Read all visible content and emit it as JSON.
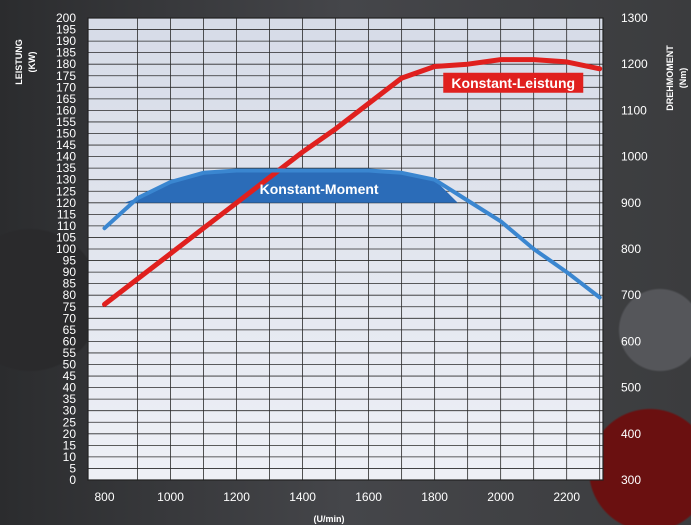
{
  "chart_data": {
    "type": "line",
    "x": [
      800,
      900,
      1000,
      1100,
      1200,
      1300,
      1400,
      1500,
      1600,
      1700,
      1800,
      1900,
      2000,
      2100,
      2200,
      2300
    ],
    "xlim": [
      750,
      2310
    ],
    "x_ticks": [
      800,
      1000,
      1200,
      1400,
      1600,
      1800,
      2000,
      2200
    ],
    "x_unit": "(U/min)",
    "y_left": {
      "label": "LEISTUNG",
      "unit": "(KW)",
      "lim": [
        0,
        200
      ],
      "ticks": [
        0,
        5,
        10,
        15,
        20,
        25,
        30,
        35,
        40,
        45,
        50,
        55,
        60,
        65,
        70,
        75,
        80,
        85,
        90,
        95,
        100,
        105,
        110,
        115,
        120,
        125,
        130,
        135,
        140,
        145,
        150,
        155,
        160,
        165,
        170,
        175,
        180,
        185,
        190,
        195,
        200
      ]
    },
    "y_right": {
      "label": "DREHMOMENT",
      "unit": "(Nm)",
      "lim": [
        300,
        1300
      ],
      "ticks": [
        300,
        400,
        500,
        600,
        700,
        800,
        900,
        1000,
        1100,
        1200,
        1300
      ]
    },
    "series": [
      {
        "name": "Leistung",
        "axis": "left",
        "color": "#e0201e",
        "values": [
          76,
          87,
          98,
          109,
          120,
          131,
          142,
          152,
          163,
          174,
          179,
          180,
          182,
          182,
          181,
          178
        ]
      },
      {
        "name": "Drehmoment",
        "axis": "right",
        "color": "#3a86d0",
        "values": [
          845,
          910,
          945,
          965,
          970,
          970,
          970,
          970,
          970,
          965,
          950,
          905,
          860,
          800,
          750,
          695
        ]
      }
    ],
    "annotations": {
      "torque_band": {
        "label": "Konstant-Moment",
        "color": "#2b6cb8",
        "x_range": [
          900,
          1800
        ],
        "y_range_right": [
          900,
          970
        ]
      },
      "power_label": {
        "label": "Konstant-Leistung",
        "color": "#e0201e",
        "x": 2020,
        "y_left": 175
      }
    },
    "grid": true
  }
}
